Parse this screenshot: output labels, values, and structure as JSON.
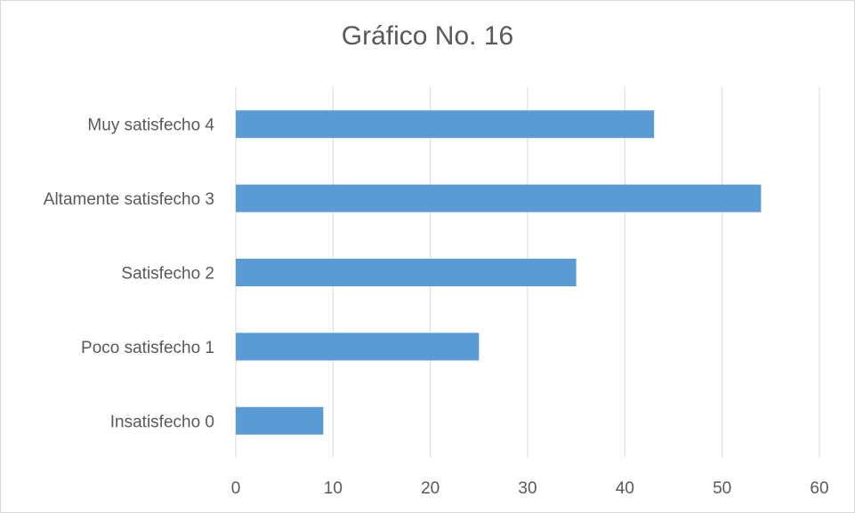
{
  "chart_data": {
    "type": "bar",
    "orientation": "horizontal",
    "title": "Gráfico No. 16",
    "categories": [
      "Muy satisfecho 4",
      "Altamente satisfecho 3",
      "Satisfecho 2",
      "Poco satisfecho 1",
      "Insatisfecho 0"
    ],
    "values": [
      43,
      54,
      35,
      25,
      9
    ],
    "xlim": [
      0,
      60
    ],
    "xticks": [
      "0",
      "10",
      "20",
      "30",
      "40",
      "50",
      "60"
    ],
    "grid": "vertical",
    "legend": "none",
    "bar_color": "#5b9bd5",
    "grid_color": "#d9d9d9"
  }
}
